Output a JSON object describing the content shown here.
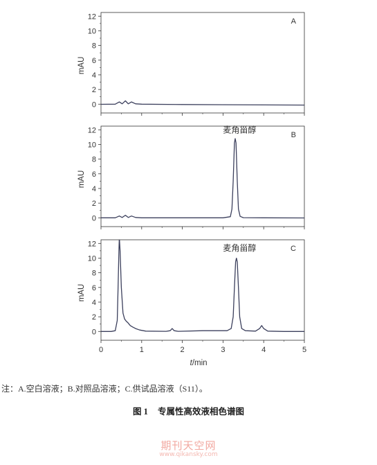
{
  "chart_data": {
    "type": "line",
    "xlabel_italic": "t",
    "xlabel_rest": "/min",
    "ylabel": "mAU",
    "xlim": [
      0,
      5
    ],
    "ylim": [
      -1.2,
      12.5
    ],
    "x_ticks": [
      0,
      1,
      2,
      3,
      4,
      5
    ],
    "y_ticks": [
      0,
      2,
      4,
      6,
      8,
      10,
      12
    ],
    "panels": [
      {
        "letter": "A",
        "peak_label": "",
        "points": [
          [
            0.0,
            -0.02
          ],
          [
            0.35,
            0.0
          ],
          [
            0.45,
            0.3
          ],
          [
            0.52,
            0.05
          ],
          [
            0.6,
            0.45
          ],
          [
            0.67,
            0.05
          ],
          [
            0.75,
            0.3
          ],
          [
            0.85,
            0.05
          ],
          [
            1.0,
            0.0
          ],
          [
            2.0,
            -0.05
          ],
          [
            3.0,
            -0.08
          ],
          [
            4.0,
            -0.1
          ],
          [
            5.0,
            -0.12
          ]
        ]
      },
      {
        "letter": "B",
        "peak_label": "麦角甾醇",
        "points": [
          [
            0.0,
            0.0
          ],
          [
            0.35,
            0.0
          ],
          [
            0.45,
            0.25
          ],
          [
            0.52,
            0.05
          ],
          [
            0.6,
            0.35
          ],
          [
            0.67,
            0.05
          ],
          [
            0.75,
            0.25
          ],
          [
            0.85,
            0.05
          ],
          [
            1.0,
            0.0
          ],
          [
            2.0,
            0.0
          ],
          [
            3.0,
            0.0
          ],
          [
            3.18,
            0.15
          ],
          [
            3.22,
            1.2
          ],
          [
            3.25,
            5.0
          ],
          [
            3.28,
            10.2
          ],
          [
            3.3,
            10.8
          ],
          [
            3.32,
            10.2
          ],
          [
            3.35,
            5.0
          ],
          [
            3.38,
            1.2
          ],
          [
            3.42,
            0.2
          ],
          [
            3.5,
            0.02
          ],
          [
            4.0,
            0.0
          ],
          [
            5.0,
            -0.02
          ]
        ]
      },
      {
        "letter": "C",
        "peak_label": "麦角甾醇",
        "points": [
          [
            0.0,
            0.0
          ],
          [
            0.25,
            0.0
          ],
          [
            0.35,
            0.1
          ],
          [
            0.4,
            1.5
          ],
          [
            0.42,
            6.0
          ],
          [
            0.44,
            11.0
          ],
          [
            0.45,
            12.8
          ],
          [
            0.47,
            11.0
          ],
          [
            0.5,
            6.0
          ],
          [
            0.54,
            2.5
          ],
          [
            0.58,
            1.7
          ],
          [
            0.62,
            1.4
          ],
          [
            0.66,
            1.2
          ],
          [
            0.72,
            0.8
          ],
          [
            0.78,
            0.6
          ],
          [
            0.85,
            0.4
          ],
          [
            0.95,
            0.2
          ],
          [
            1.1,
            0.05
          ],
          [
            1.6,
            0.02
          ],
          [
            1.7,
            0.1
          ],
          [
            1.75,
            0.4
          ],
          [
            1.8,
            0.1
          ],
          [
            1.9,
            0.02
          ],
          [
            2.5,
            0.1
          ],
          [
            2.8,
            0.1
          ],
          [
            3.1,
            0.1
          ],
          [
            3.2,
            0.4
          ],
          [
            3.25,
            2.0
          ],
          [
            3.28,
            6.0
          ],
          [
            3.31,
            9.5
          ],
          [
            3.33,
            10.0
          ],
          [
            3.35,
            9.5
          ],
          [
            3.38,
            6.0
          ],
          [
            3.41,
            2.0
          ],
          [
            3.46,
            0.4
          ],
          [
            3.55,
            0.1
          ],
          [
            3.8,
            0.05
          ],
          [
            3.9,
            0.4
          ],
          [
            3.95,
            0.8
          ],
          [
            4.0,
            0.4
          ],
          [
            4.1,
            0.05
          ],
          [
            4.5,
            0.0
          ],
          [
            5.0,
            0.0
          ]
        ]
      }
    ]
  },
  "note": "注：A.空白溶液；B.对照品溶液；C.供试品溶液（S11）。",
  "caption": {
    "number": "图 1",
    "title": "专属性高效液相色谱图"
  },
  "watermark": {
    "cn": "期刊天空网",
    "url": "www.qikansky.com"
  },
  "colors": {
    "line": "#3b3f5c",
    "axis": "#333333",
    "watermark": "#f2a8a0"
  }
}
